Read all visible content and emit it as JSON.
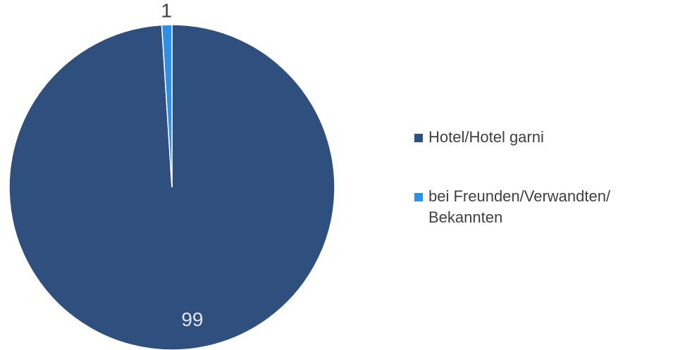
{
  "chart_data": {
    "type": "pie",
    "categories": [
      "Hotel/Hotel garni",
      "bei Freunden/Verwandten/ Bekannten"
    ],
    "values": [
      99,
      1
    ],
    "colors": [
      "#2f4f7f",
      "#2e8fe8"
    ],
    "legend": "right"
  }
}
